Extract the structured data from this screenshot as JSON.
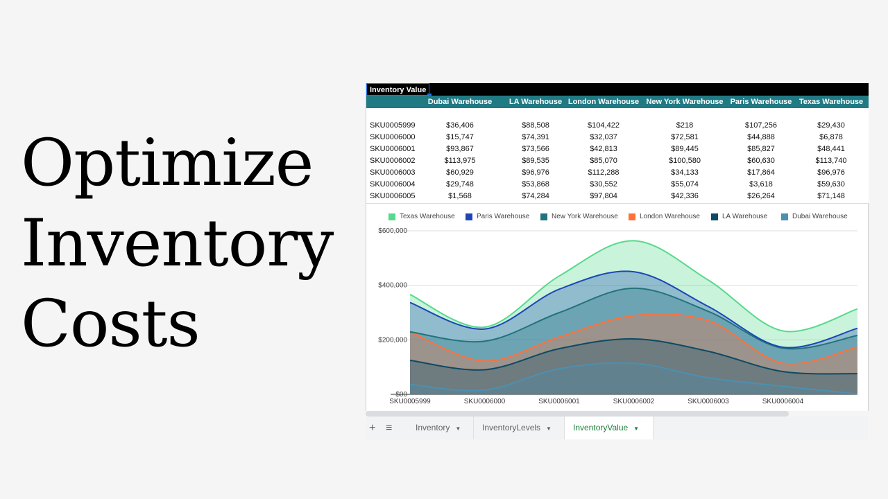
{
  "headline": {
    "line1": "Optimize",
    "line2": "Inventory",
    "line3": "Costs"
  },
  "sheet": {
    "title_cell": "Inventory Value",
    "columns": [
      "Dubai Warehouse",
      "LA Warehouse",
      "London Warehouse",
      "New York Warehouse",
      "Paris Warehouse",
      "Texas Warehouse"
    ],
    "rows": [
      {
        "sku": "SKU0005999",
        "values": [
          "$36,406",
          "$88,508",
          "$104,422",
          "$218",
          "$107,256",
          "$29,430"
        ]
      },
      {
        "sku": "SKU0006000",
        "values": [
          "$15,747",
          "$74,391",
          "$32,037",
          "$72,581",
          "$44,888",
          "$6,878"
        ]
      },
      {
        "sku": "SKU0006001",
        "values": [
          "$93,867",
          "$73,566",
          "$42,813",
          "$89,445",
          "$85,827",
          "$48,441"
        ]
      },
      {
        "sku": "SKU0006002",
        "values": [
          "$113,975",
          "$89,535",
          "$85,070",
          "$100,580",
          "$60,630",
          "$113,740"
        ]
      },
      {
        "sku": "SKU0006003",
        "values": [
          "$60,929",
          "$96,976",
          "$112,288",
          "$34,133",
          "$17,864",
          "$96,976"
        ]
      },
      {
        "sku": "SKU0006004",
        "values": [
          "$29,748",
          "$53,868",
          "$30,552",
          "$55,074",
          "$3,618",
          "$59,630"
        ]
      },
      {
        "sku": "SKU0006005",
        "values": [
          "$1,568",
          "$74,284",
          "$97,804",
          "$42,336",
          "$26,264",
          "$71,148"
        ]
      }
    ]
  },
  "legend": [
    {
      "label": "Texas Warehouse",
      "color": "#57d98c"
    },
    {
      "label": "Paris Warehouse",
      "color": "#1c47b5"
    },
    {
      "label": "New York Warehouse",
      "color": "#22737c"
    },
    {
      "label": "London Warehouse",
      "color": "#ff7138"
    },
    {
      "label": "LA Warehouse",
      "color": "#0d4a63"
    },
    {
      "label": "Dubai Warehouse",
      "color": "#4c90b0"
    }
  ],
  "chart_data": {
    "type": "area",
    "stacked": true,
    "title": "",
    "xlabel": "",
    "ylabel": "",
    "categories": [
      "SKU0005999",
      "SKU0006000",
      "SKU0006001",
      "SKU0006002",
      "SKU0006003",
      "SKU0006004",
      "SKU0006005"
    ],
    "x_tick_labels": [
      "SKU0005999",
      "SKU0006000",
      "SKU0006001",
      "SKU0006002",
      "SKU0006003",
      "SKU0006004"
    ],
    "y_tick_labels": [
      "$00",
      "$200,000",
      "$400,000",
      "$600,000"
    ],
    "ylim": [
      0,
      600000
    ],
    "grid": true,
    "legend_position": "top",
    "series": [
      {
        "name": "Dubai Warehouse",
        "values": [
          36406,
          15747,
          93867,
          113975,
          60929,
          29748,
          1568
        ]
      },
      {
        "name": "LA Warehouse",
        "values": [
          88508,
          74391,
          73566,
          89535,
          96976,
          53868,
          74284
        ]
      },
      {
        "name": "London Warehouse",
        "values": [
          104422,
          32037,
          42813,
          85070,
          112288,
          30552,
          97804
        ]
      },
      {
        "name": "New York Warehouse",
        "values": [
          218,
          72581,
          89445,
          100580,
          34133,
          55074,
          42336
        ]
      },
      {
        "name": "Paris Warehouse",
        "values": [
          107256,
          44888,
          85827,
          60630,
          17864,
          3618,
          26264
        ]
      },
      {
        "name": "Texas Warehouse",
        "values": [
          29430,
          6878,
          48441,
          113740,
          96976,
          59630,
          71148
        ]
      }
    ]
  },
  "tabs": {
    "add_icon": "+",
    "list_icon": "≡",
    "items": [
      {
        "label": "Inventory",
        "active": false
      },
      {
        "label": "InventoryLevels",
        "active": false
      },
      {
        "label": "InventoryValue",
        "active": true
      }
    ],
    "caret": "▼"
  }
}
